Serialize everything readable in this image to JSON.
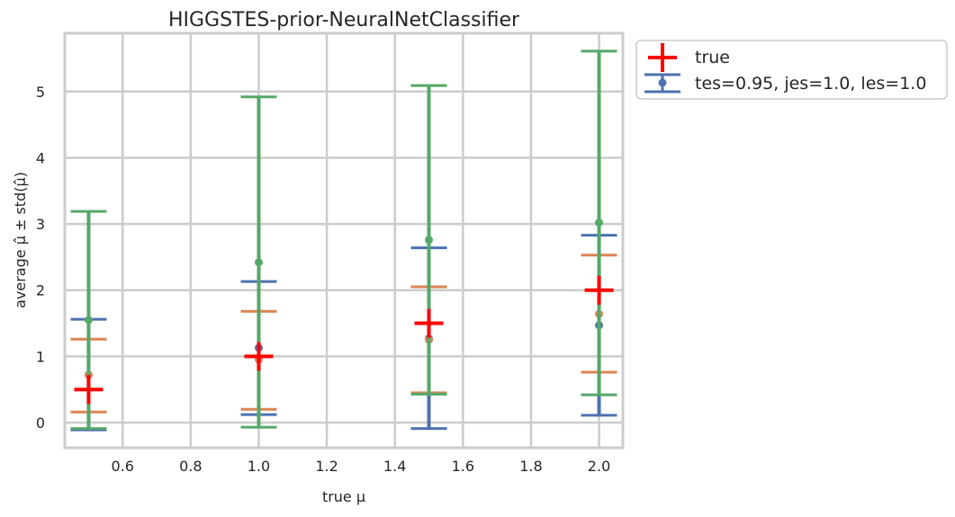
{
  "chart_data": {
    "type": "errorbar",
    "title": "HIGGSTES-prior-NeuralNetClassifier",
    "xlabel": "true μ",
    "ylabel": "average μ̂ ± std(μ̂)",
    "xlim": [
      0.43,
      2.07
    ],
    "ylim": [
      -0.38,
      5.88
    ],
    "xticks": [
      0.6,
      0.8,
      1.0,
      1.2,
      1.4,
      1.6,
      1.8,
      2.0
    ],
    "xtick_labels": [
      "0.6",
      "0.8",
      "1.0",
      "1.2",
      "1.4",
      "1.6",
      "1.8",
      "2.0"
    ],
    "yticks": [
      0,
      1,
      2,
      3,
      4,
      5
    ],
    "ytick_labels": [
      "0",
      "1",
      "2",
      "3",
      "4",
      "5"
    ],
    "grid": true,
    "legend_position": "outside-top-right",
    "true_series": {
      "name": "true",
      "color": "#ff0000",
      "x": [
        0.5,
        1.0,
        1.5,
        2.0
      ],
      "y": [
        0.5,
        1.0,
        1.5,
        2.0
      ]
    },
    "series": [
      {
        "name": "tes=0.95, jes=1.0, les=1.0",
        "color": "#4c72b0",
        "x": [
          0.5,
          1.0,
          1.5,
          2.0
        ],
        "mean": [
          0.72,
          1.13,
          1.27,
          1.47
        ],
        "lower": [
          -0.11,
          0.12,
          -0.09,
          0.11
        ],
        "upper": [
          1.56,
          2.13,
          2.64,
          2.83
        ]
      },
      {
        "name": "",
        "color": "#dd8452",
        "x": [
          0.5,
          1.0,
          1.5,
          2.0
        ],
        "mean": [
          0.72,
          0.95,
          1.25,
          1.64
        ],
        "lower": [
          0.16,
          0.2,
          0.45,
          0.76
        ],
        "upper": [
          1.26,
          1.68,
          2.05,
          2.53
        ]
      },
      {
        "name": "",
        "color": "#55a868",
        "x": [
          0.5,
          1.0,
          1.5,
          2.0
        ],
        "mean": [
          1.55,
          2.42,
          2.76,
          3.02
        ],
        "lower": [
          -0.09,
          -0.07,
          0.43,
          0.42
        ],
        "upper": [
          3.19,
          4.92,
          5.09,
          5.61
        ]
      }
    ]
  }
}
